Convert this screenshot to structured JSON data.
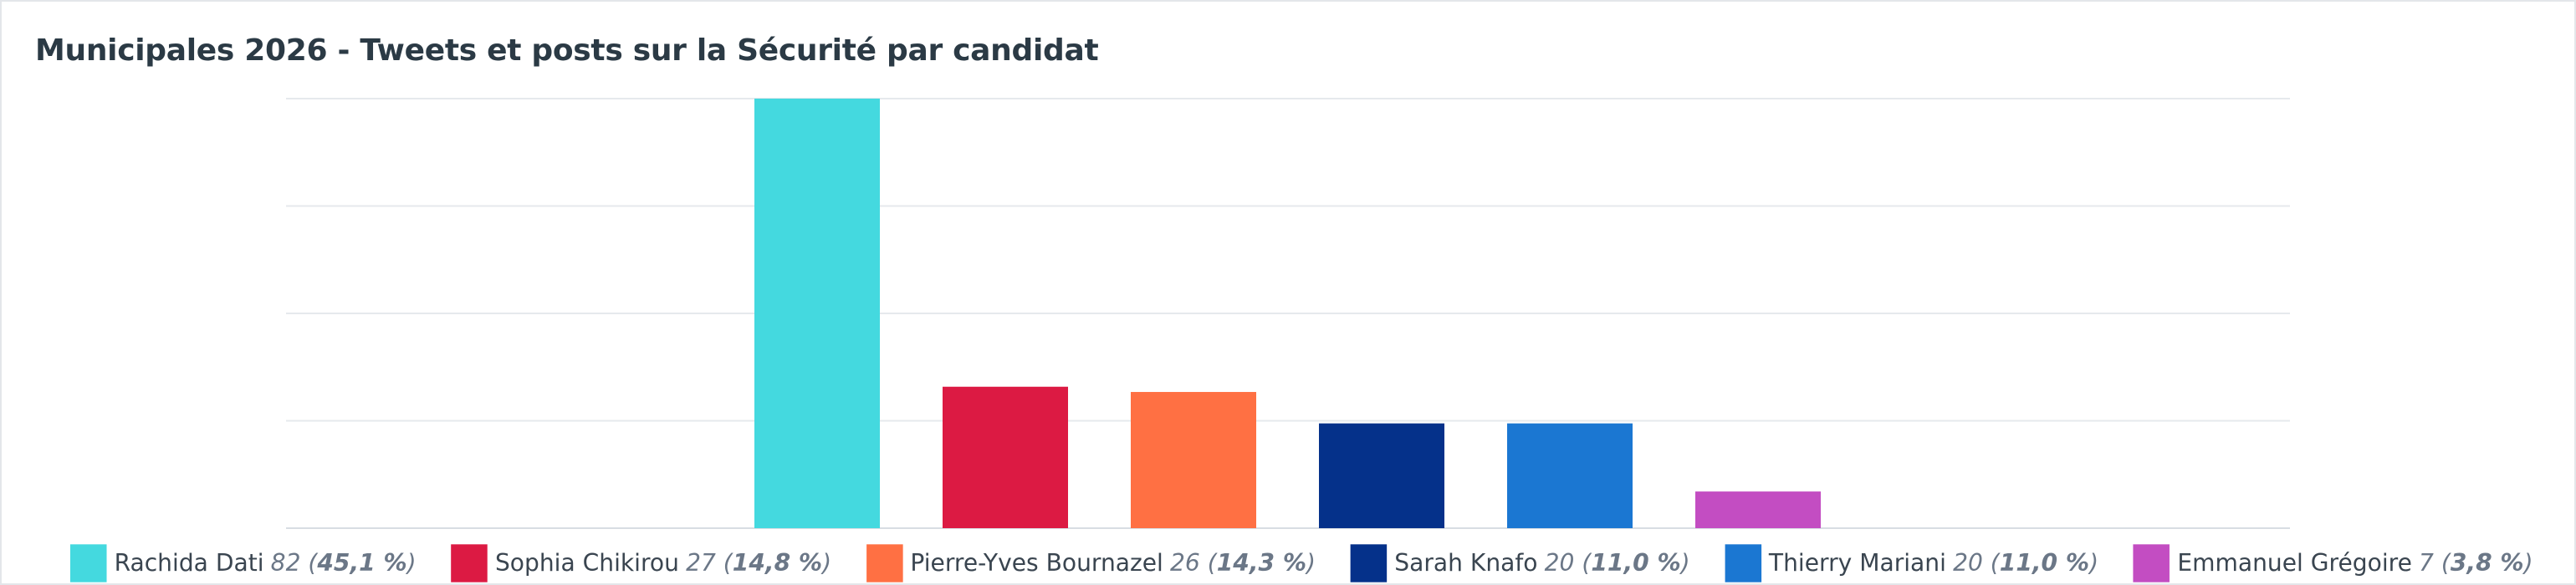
{
  "chart_data": {
    "type": "bar",
    "title": "Municipales 2026 - Tweets et posts sur la Sécurité par candidat",
    "xlabel": "",
    "ylabel": "",
    "ylim": [
      0,
      82
    ],
    "grid": true,
    "legend_position": "bottom",
    "categories": [
      "Rachida Dati",
      "Sophia Chikirou",
      "Pierre-Yves Bournazel",
      "Sarah Knafo",
      "Thierry Mariani",
      "Emmanuel Grégoire"
    ],
    "values": [
      82,
      27,
      26,
      20,
      20,
      7
    ],
    "value_labels": [
      "82",
      "27",
      "26",
      "20",
      "20",
      "7"
    ],
    "percent_labels": [
      "45,1 %",
      "14,8 %",
      "14,3 %",
      "11,0 %",
      "11,0 %",
      "3,8 %"
    ],
    "colors": [
      "#44d9df",
      "#dc1a43",
      "#ff7043",
      "#05318a",
      "#1b77d2",
      "#c34dc2"
    ]
  }
}
